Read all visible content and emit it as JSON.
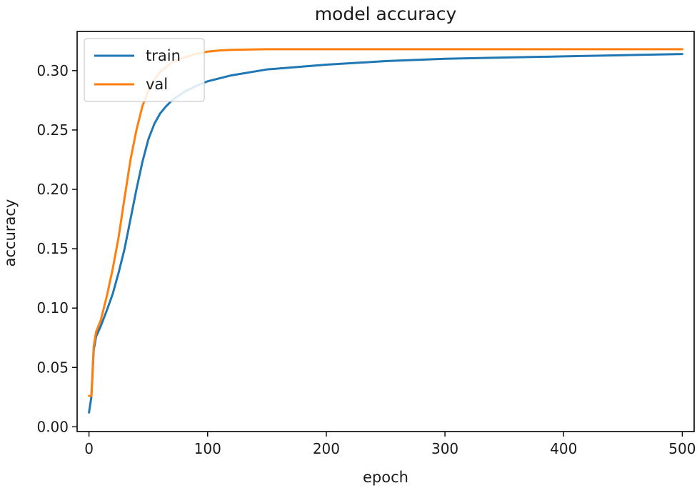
{
  "chart_data": {
    "type": "line",
    "title": "model accuracy",
    "xlabel": "epoch",
    "ylabel": "accuracy",
    "xlim": [
      -10,
      510
    ],
    "ylim": [
      -0.004,
      0.333
    ],
    "xticks": [
      0,
      100,
      200,
      300,
      400,
      500
    ],
    "xtick_labels": [
      "0",
      "100",
      "200",
      "300",
      "400",
      "500"
    ],
    "yticks": [
      0.0,
      0.05,
      0.1,
      0.15,
      0.2,
      0.25,
      0.3
    ],
    "ytick_labels": [
      "0.00",
      "0.05",
      "0.10",
      "0.15",
      "0.20",
      "0.25",
      "0.30"
    ],
    "grid": false,
    "legend_position": "upper-left",
    "series": [
      {
        "name": "train",
        "color": "#1f77b4",
        "x": [
          0,
          2,
          4,
          6,
          10,
          15,
          20,
          25,
          30,
          35,
          40,
          45,
          50,
          55,
          60,
          65,
          70,
          80,
          90,
          100,
          120,
          150,
          200,
          250,
          300,
          350,
          400,
          450,
          500
        ],
        "y": [
          0.012,
          0.025,
          0.065,
          0.076,
          0.085,
          0.098,
          0.112,
          0.13,
          0.15,
          0.175,
          0.2,
          0.223,
          0.242,
          0.255,
          0.264,
          0.27,
          0.275,
          0.282,
          0.287,
          0.291,
          0.296,
          0.301,
          0.305,
          0.308,
          0.31,
          0.311,
          0.312,
          0.313,
          0.314
        ]
      },
      {
        "name": "val",
        "color": "#ff7f0e",
        "x": [
          0,
          2,
          4,
          6,
          10,
          15,
          20,
          25,
          30,
          35,
          40,
          45,
          50,
          55,
          60,
          70,
          80,
          90,
          100,
          110,
          120,
          150,
          200,
          300,
          400,
          500
        ],
        "y": [
          0.026,
          0.026,
          0.068,
          0.08,
          0.09,
          0.11,
          0.133,
          0.16,
          0.193,
          0.225,
          0.25,
          0.27,
          0.283,
          0.292,
          0.299,
          0.307,
          0.311,
          0.314,
          0.316,
          0.317,
          0.3175,
          0.318,
          0.318,
          0.318,
          0.318,
          0.318
        ]
      }
    ]
  }
}
